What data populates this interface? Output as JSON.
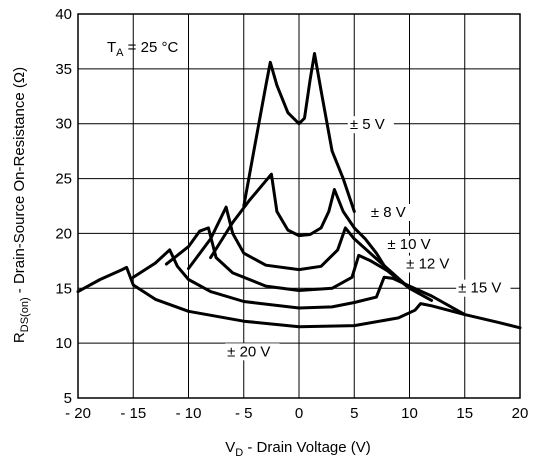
{
  "chart_data": {
    "type": "line",
    "title": "",
    "xlabel_main": "V",
    "xlabel_sub": "D",
    "xlabel_rest": " - Drain Voltage (V)",
    "ylabel_main": "R",
    "ylabel_sub": "DS(on)",
    "ylabel_rest": " - Drain-Source On-Resistance (Ω)",
    "annotation": {
      "main": "T",
      "sub": "A",
      "rest": " = 25 °C"
    },
    "xlim": [
      -20,
      20
    ],
    "ylim": [
      5,
      40
    ],
    "grid": true,
    "xticks": [
      -20,
      -15,
      -10,
      -5,
      0,
      5,
      10,
      15,
      20
    ],
    "xtick_labels": [
      "- 20",
      "- 15",
      "- 10",
      "- 5",
      "0",
      "5",
      "10",
      "15",
      "20"
    ],
    "yticks": [
      5,
      10,
      15,
      20,
      25,
      30,
      35,
      40
    ],
    "ytick_labels": [
      "5",
      "10",
      "15",
      "20",
      "25",
      "30",
      "35",
      "40"
    ],
    "series": [
      {
        "name": "± 5 V",
        "label_at": [
          4.6,
          29.5
        ],
        "points": [
          [
            -5,
            22.5
          ],
          [
            -4,
            28
          ],
          [
            -3,
            33.5
          ],
          [
            -2.6,
            35.6
          ],
          [
            -2,
            33.5
          ],
          [
            -1,
            31
          ],
          [
            0,
            30
          ],
          [
            0.5,
            30.5
          ],
          [
            1,
            34
          ],
          [
            1.4,
            36.4
          ],
          [
            2,
            33
          ],
          [
            3,
            27.5
          ],
          [
            4,
            25
          ],
          [
            5,
            22
          ]
        ]
      },
      {
        "name": "± 8 V",
        "label_at": [
          6.5,
          21.5
        ],
        "points": [
          [
            -8,
            17.8
          ],
          [
            -6,
            21
          ],
          [
            -4.5,
            23
          ],
          [
            -2.5,
            25.4
          ],
          [
            -2,
            22
          ],
          [
            -1,
            20.3
          ],
          [
            0,
            19.8
          ],
          [
            1,
            19.9
          ],
          [
            2,
            20.5
          ],
          [
            2.7,
            22
          ],
          [
            3.2,
            24
          ],
          [
            4,
            22
          ],
          [
            5,
            20.5
          ],
          [
            6,
            19.5
          ],
          [
            7,
            18.2
          ],
          [
            8,
            16.6
          ]
        ]
      },
      {
        "name": "± 10 V",
        "label_at": [
          8,
          18.6
        ],
        "points": [
          [
            -10,
            16.8
          ],
          [
            -8,
            19.5
          ],
          [
            -6.6,
            22.4
          ],
          [
            -6,
            20
          ],
          [
            -5,
            18.2
          ],
          [
            -3,
            17.1
          ],
          [
            0,
            16.7
          ],
          [
            2,
            17
          ],
          [
            3.5,
            18.5
          ],
          [
            4.2,
            20.5
          ],
          [
            5,
            19.5
          ],
          [
            7,
            17.7
          ],
          [
            8,
            16.8
          ],
          [
            10,
            15
          ]
        ]
      },
      {
        "name": "± 12 V",
        "label_at": [
          9.7,
          16.8
        ],
        "points": [
          [
            -12,
            17.2
          ],
          [
            -10,
            18.8
          ],
          [
            -9,
            20.2
          ],
          [
            -8.2,
            20.5
          ],
          [
            -7.5,
            17.8
          ],
          [
            -6,
            16.4
          ],
          [
            -3,
            15.2
          ],
          [
            0,
            14.8
          ],
          [
            3,
            15
          ],
          [
            4.8,
            16
          ],
          [
            5.4,
            18
          ],
          [
            6.5,
            17.5
          ],
          [
            8,
            16.6
          ],
          [
            10,
            15
          ],
          [
            12,
            13.9
          ]
        ]
      },
      {
        "name": "± 15 V",
        "label_at": [
          14.4,
          14.6
        ],
        "points": [
          [
            -15,
            16
          ],
          [
            -13,
            17.3
          ],
          [
            -11.7,
            18.5
          ],
          [
            -11,
            17
          ],
          [
            -10,
            15.8
          ],
          [
            -8,
            14.7
          ],
          [
            -5,
            13.8
          ],
          [
            0,
            13.2
          ],
          [
            3,
            13.3
          ],
          [
            5,
            13.7
          ],
          [
            7,
            14.2
          ],
          [
            7.7,
            16
          ],
          [
            8.5,
            15.9
          ],
          [
            10,
            15.2
          ],
          [
            12,
            14.3
          ],
          [
            15,
            12.6
          ]
        ]
      },
      {
        "name": "± 20 V",
        "label_at": [
          -6.5,
          8.8
        ],
        "points": [
          [
            -20,
            14.7
          ],
          [
            -18,
            15.8
          ],
          [
            -16,
            16.7
          ],
          [
            -15.6,
            16.9
          ],
          [
            -15,
            15.3
          ],
          [
            -13,
            14
          ],
          [
            -10,
            12.9
          ],
          [
            -5,
            12
          ],
          [
            0,
            11.5
          ],
          [
            5,
            11.6
          ],
          [
            9,
            12.3
          ],
          [
            10.5,
            13
          ],
          [
            11,
            13.6
          ],
          [
            12,
            13.4
          ],
          [
            15,
            12.6
          ],
          [
            18,
            11.9
          ],
          [
            20,
            11.4
          ]
        ]
      }
    ]
  }
}
